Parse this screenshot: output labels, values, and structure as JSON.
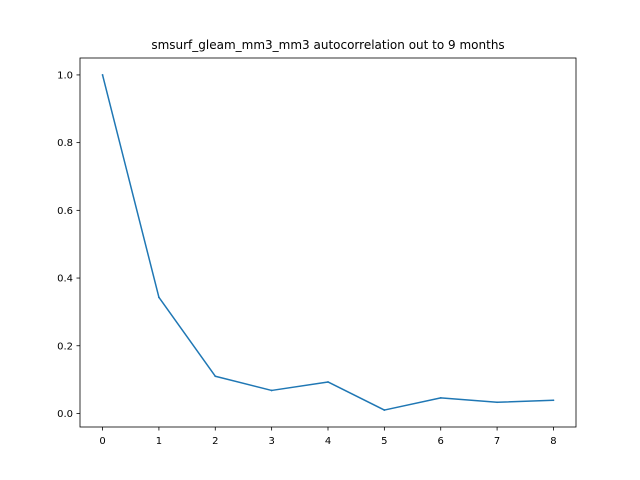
{
  "chart_data": {
    "type": "line",
    "title": "smsurf_gleam_mm3_mm3 autocorrelation out to 9 months",
    "xlabel": "",
    "ylabel": "",
    "x": [
      0,
      1,
      2,
      3,
      4,
      5,
      6,
      7,
      8
    ],
    "series": [
      {
        "values": [
          1.0,
          0.343,
          0.11,
          0.068,
          0.093,
          0.01,
          0.046,
          0.033,
          0.039
        ],
        "color": "#1f77b4"
      }
    ],
    "xlim": [
      -0.4,
      8.4
    ],
    "ylim": [
      -0.04,
      1.05
    ],
    "xticks": [
      0,
      1,
      2,
      3,
      4,
      5,
      6,
      7,
      8
    ],
    "yticks": [
      0.0,
      0.2,
      0.4,
      0.6,
      0.8,
      1.0
    ],
    "ytick_labels": [
      "0.0",
      "0.2",
      "0.4",
      "0.6",
      "0.8",
      "1.0"
    ],
    "grid": false
  }
}
